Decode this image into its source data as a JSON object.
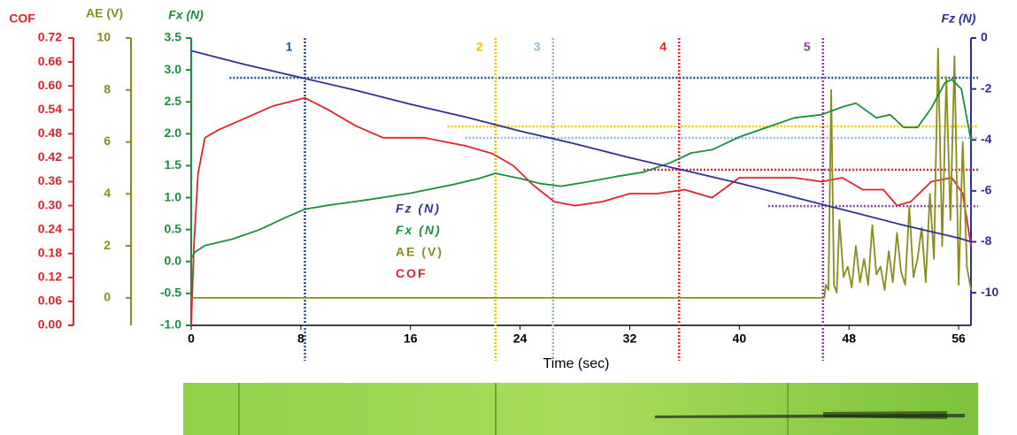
{
  "chart_data": {
    "type": "line",
    "x_label": "Time (sec)",
    "xlim": [
      0,
      56.9
    ],
    "xticks": [
      0,
      8,
      16,
      24,
      32,
      40,
      48,
      56
    ],
    "axes": [
      {
        "title": "COF",
        "color": "#e3232b",
        "lim": [
          0,
          0.72
        ],
        "ticks": [
          {
            "value": 0,
            "label": "0.00"
          },
          0.06,
          0.12,
          0.18,
          0.24,
          {
            "value": 0.3,
            "label": "0.30"
          },
          0.36,
          0.42,
          0.48,
          0.54,
          {
            "value": 0.6,
            "label": "0.60"
          },
          0.66,
          0.72
        ]
      },
      {
        "title": "AE (V)",
        "color": "#8b8b1e",
        "lim": [
          -1.06,
          10
        ],
        "ticks": [
          0,
          2,
          4,
          6,
          8,
          10
        ]
      },
      {
        "title": "Fx (N)",
        "color": "#1a8f3c",
        "lim": [
          -1,
          3.5
        ],
        "ticks": [
          {
            "value": -1,
            "label": "-1.0"
          },
          -0.5,
          {
            "value": 0,
            "label": "0.0"
          },
          0.5,
          {
            "value": 1,
            "label": "1.0"
          },
          1.5,
          {
            "value": 2,
            "label": "2.0"
          },
          2.5,
          {
            "value": 3,
            "label": "3.0"
          },
          3.5
        ]
      },
      {
        "title": "Fz (N)",
        "color": "#2e3192",
        "lim": [
          -11.28,
          0
        ],
        "ticks": [
          0,
          -2,
          -4,
          -6,
          -8,
          -10
        ]
      }
    ],
    "series": [
      {
        "name": "Fz (N)",
        "color": "#2e3192",
        "axis": 3,
        "x": [
          0,
          4,
          8,
          12,
          16,
          20,
          24,
          28,
          32,
          36,
          40,
          44,
          48,
          52,
          56,
          56.9
        ],
        "values": [
          -0.5,
          -1.05,
          -1.55,
          -2.05,
          -2.6,
          -3.1,
          -3.65,
          -4.15,
          -4.7,
          -5.2,
          -5.7,
          -6.25,
          -6.8,
          -7.35,
          -7.85,
          -8.0
        ]
      },
      {
        "name": "Fx (N)",
        "color": "#1a8f3c",
        "axis": 2,
        "x": [
          0,
          0.3,
          1,
          3,
          5,
          7,
          8.3,
          10,
          13,
          16,
          19,
          21,
          22.2,
          24,
          25.5,
          27,
          29,
          31,
          33,
          35,
          36.5,
          38,
          40,
          42,
          44,
          46,
          47.5,
          48.5,
          50,
          51,
          52,
          53,
          54,
          55,
          55.5,
          56.2,
          56.9
        ],
        "values": [
          0.05,
          0.15,
          0.25,
          0.35,
          0.5,
          0.7,
          0.82,
          0.88,
          0.97,
          1.07,
          1.2,
          1.3,
          1.38,
          1.3,
          1.22,
          1.18,
          1.25,
          1.33,
          1.4,
          1.55,
          1.7,
          1.75,
          1.95,
          2.1,
          2.25,
          2.3,
          2.42,
          2.48,
          2.25,
          2.3,
          2.1,
          2.1,
          2.4,
          2.8,
          2.85,
          2.7,
          1.9
        ]
      },
      {
        "name": "AE (V)",
        "color": "#8b8b1e",
        "axis": 1,
        "x": [
          0,
          10,
          20,
          30,
          40,
          46.2,
          46.3,
          46.5,
          46.7,
          46.9,
          47.1,
          47.3,
          47.6,
          47.9,
          48.2,
          48.5,
          48.8,
          49.1,
          49.4,
          49.7,
          50,
          50.3,
          50.6,
          50.9,
          51.2,
          51.5,
          51.8,
          52.1,
          52.4,
          52.7,
          53,
          53.3,
          53.6,
          53.9,
          54.2,
          54.5,
          54.8,
          55.1,
          55.4,
          55.7,
          56,
          56.3,
          56.6,
          56.9
        ],
        "values": [
          0,
          0,
          0,
          0,
          0,
          0,
          0.5,
          0.3,
          8,
          0.5,
          0.2,
          3,
          0.8,
          1.2,
          0.4,
          2,
          0.6,
          1.5,
          0.5,
          2.8,
          0.9,
          1.2,
          0.3,
          1.8,
          0.6,
          2.5,
          1,
          0.5,
          3.5,
          0.8,
          1.5,
          2.7,
          0.6,
          4,
          1.5,
          9.6,
          2,
          8.5,
          3,
          9.3,
          0.5,
          6,
          1.2,
          0.3
        ]
      },
      {
        "name": "COF",
        "color": "#e3232b",
        "axis": 0,
        "x": [
          0,
          0.2,
          0.5,
          1,
          2,
          4,
          6,
          8.3,
          10,
          12,
          14,
          17,
          20,
          22,
          23.5,
          25,
          26.5,
          28,
          30,
          32,
          34,
          36,
          38,
          40,
          42,
          44,
          46,
          47.5,
          49,
          50.5,
          51.5,
          52.5,
          54,
          55.5,
          56.3,
          56.9
        ],
        "values": [
          0,
          0.2,
          0.38,
          0.47,
          0.49,
          0.52,
          0.55,
          0.57,
          0.54,
          0.5,
          0.47,
          0.47,
          0.45,
          0.43,
          0.4,
          0.35,
          0.31,
          0.3,
          0.31,
          0.33,
          0.33,
          0.34,
          0.32,
          0.37,
          0.37,
          0.37,
          0.36,
          0.37,
          0.34,
          0.34,
          0.3,
          0.31,
          0.36,
          0.37,
          0.33,
          0.2
        ]
      }
    ],
    "markers": [
      {
        "label": "1",
        "x": 8.3,
        "color": "#1f4e8c",
        "level": -1.56,
        "level_from": 2.8
      },
      {
        "label": "2",
        "x": 22.2,
        "color": "#f2c500",
        "level": -3.47,
        "level_from": 18.7
      },
      {
        "label": "3",
        "x": 26.4,
        "color": "#8fb8e0",
        "level": -3.92,
        "level_from": 20
      },
      {
        "label": "4",
        "x": 35.6,
        "color": "#e3232b",
        "level": -5.17,
        "level_from": 33
      },
      {
        "label": "5",
        "x": 46.1,
        "color": "#8b3fa3",
        "level": -6.6,
        "level_from": 42.1
      }
    ]
  }
}
